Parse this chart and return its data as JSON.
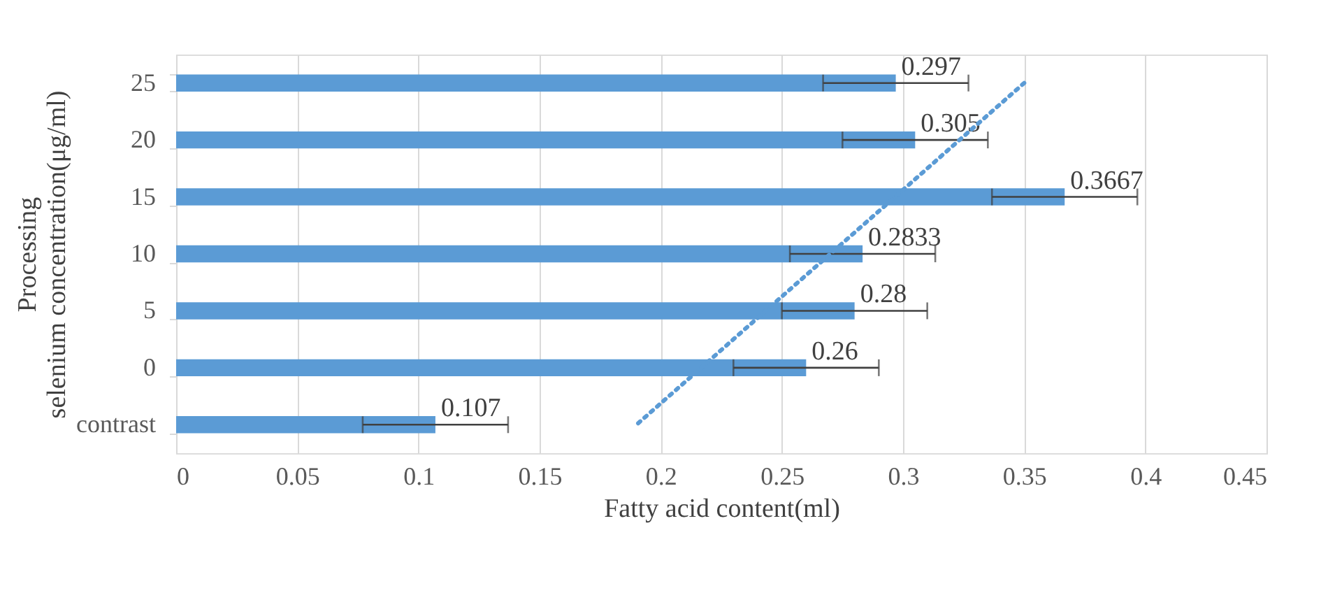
{
  "chart_data": {
    "type": "bar",
    "orientation": "horizontal",
    "xlabel": "Fatty acid content(ml)",
    "ylabel": "Processing selenium concentration(μg/ml)",
    "categories": [
      "25",
      "20",
      "15",
      "10",
      "5",
      "0",
      "contrast"
    ],
    "xlim": [
      0,
      0.45
    ],
    "xticks": [
      0,
      0.05,
      0.1,
      0.15,
      0.2,
      0.25,
      0.3,
      0.35,
      0.4,
      0.45
    ],
    "grid": "x",
    "series": [
      {
        "color": "#5b9bd5",
        "values": [
          0.297,
          0.305,
          0.3667,
          0.2833,
          0.28,
          0.26,
          0.107
        ],
        "errors": [
          0.03,
          0.03,
          0.03,
          0.03,
          0.03,
          0.03,
          0.03
        ],
        "value_labels": [
          "0.297",
          "0.305",
          "0.3667",
          "0.2833",
          "0.28",
          "0.26",
          "0.107"
        ]
      },
      {
        "type": "line",
        "color": "#5b9bd5",
        "line_style": "dotted",
        "values": [
          0.35,
          0.3233,
          0.2967,
          0.27,
          0.2433,
          0.2167,
          0.19
        ]
      }
    ]
  }
}
